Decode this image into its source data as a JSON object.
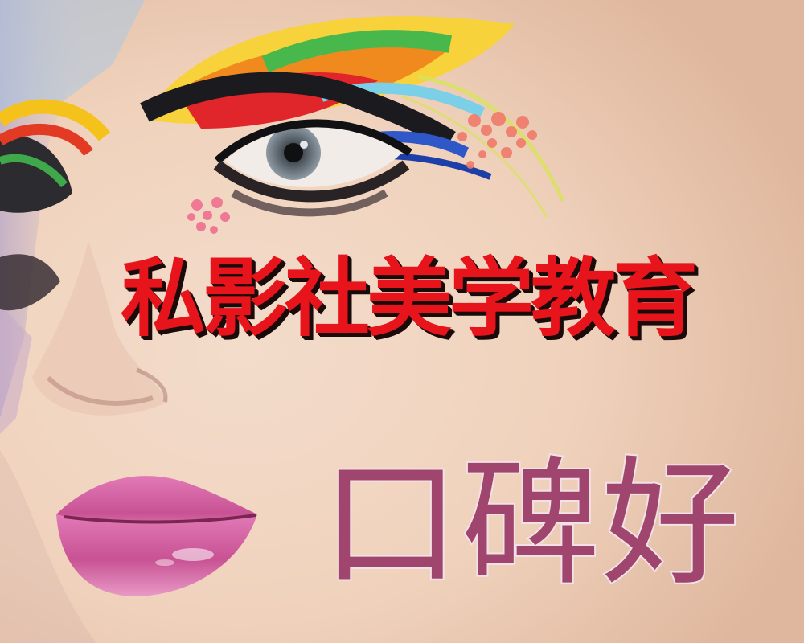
{
  "poster": {
    "title": "私影社美学教育",
    "subtitle": "口碑好"
  },
  "colors": {
    "title": "#e8141c",
    "title_shadow": "#1a0a0a",
    "subtitle": "#a0466e",
    "skin": "#f1d2bb",
    "lips": "#e06aa8"
  }
}
